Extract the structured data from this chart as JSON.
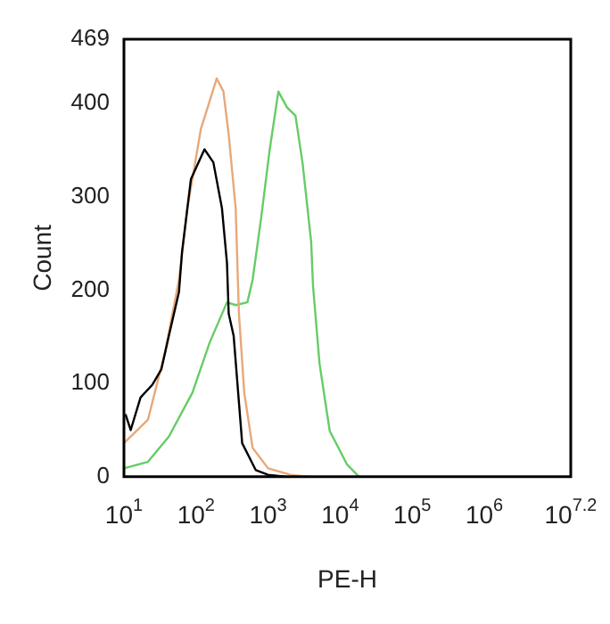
{
  "chart_data": {
    "type": "line",
    "xlabel": "PE-H",
    "ylabel": "Count",
    "log": "x",
    "grid": false,
    "legend": false,
    "marker": "none",
    "line_style": "solid",
    "xlim": [
      10,
      15848932
    ],
    "xticks": [
      {
        "value": 10,
        "label": "10$^{1}$"
      },
      {
        "value": 100,
        "label": "10$^{2}$"
      },
      {
        "value": 1000,
        "label": "10$^{3}$"
      },
      {
        "value": 10000,
        "label": "10$^{4}$"
      },
      {
        "value": 100000,
        "label": "10$^{5}$"
      },
      {
        "value": 1000000,
        "label": "10$^{6}$"
      },
      {
        "value": 15848932,
        "label": "10$^{7.2}$"
      }
    ],
    "ylim": [
      0,
      469
    ],
    "yticks": [
      0,
      100,
      200,
      300,
      400,
      469
    ],
    "series": [
      {
        "color": "#000000",
        "x": [
          10.5,
          12.4,
          17,
          25,
          33,
          42,
          58,
          64,
          85,
          131,
          174,
          229,
          269,
          284,
          333,
          437,
          676,
          1000,
          1738
        ],
        "values": [
          67,
          50,
          85,
          99,
          115,
          151,
          198,
          241,
          319,
          351,
          337,
          288,
          229,
          175,
          151,
          36,
          7,
          2,
          0
        ]
      },
      {
        "color": "#e8a878",
        "x": [
          10,
          21.5,
          37,
          58,
          76,
          117,
          155,
          194,
          240,
          284,
          355,
          394,
          467,
          610,
          1000,
          2040,
          3550
        ],
        "values": [
          36,
          61,
          133,
          211,
          288,
          373,
          403,
          427,
          413,
          367,
          288,
          175,
          90,
          31,
          9,
          2,
          0
        ]
      },
      {
        "color": "#66cc66",
        "x": [
          10,
          21.5,
          42,
          89,
          155,
          269,
          355,
          516,
          610,
          800,
          1050,
          1390,
          1830,
          2400,
          3000,
          3960,
          4200,
          5180,
          7170,
          12500,
          18300
        ],
        "values": [
          9,
          16,
          43,
          90,
          144,
          187,
          184,
          187,
          211,
          277,
          350,
          413,
          396,
          387,
          337,
          252,
          205,
          121,
          49,
          13,
          0
        ]
      }
    ]
  }
}
